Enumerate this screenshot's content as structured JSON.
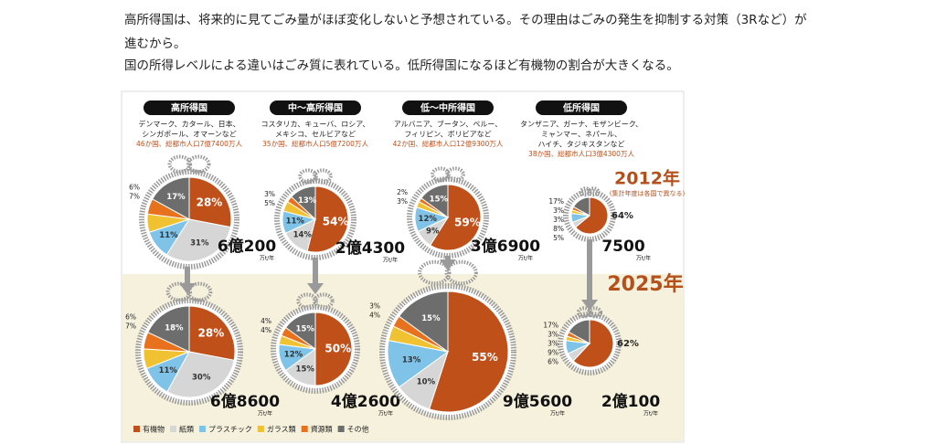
{
  "text_lines": [
    "高所得国は、将来的に見てごみ量がほぼ変化しないと予想されている。その理由はごみの発生を抑制する対策（3Rなど）が",
    "進むから。",
    "国の所得レベルによる違いはごみ質に表れている。低所得国になるほど有機物の割合が大きくなる。"
  ],
  "groups": [
    {
      "name": "高所得国",
      "countries": [
        "デンマーク、カタール、日本、",
        "シンガポール、オマーンなど"
      ],
      "population": "46か国、総都市人口7億7400万人"
    },
    {
      "name": "中～高所得国",
      "countries": [
        "コスタリカ、キューバ、ロシア、",
        "メキシコ、セルビアなど"
      ],
      "population": "35か国、総都市人口5億7200万人"
    },
    {
      "name": "低～中所得国",
      "countries": [
        "アルバニア、ブータン、ペルー、",
        "フィリピン、ボリビアなど"
      ],
      "population": "42か国、総都市人口12億9300万人"
    },
    {
      "name": "低所得国",
      "countries": [
        "タンザニア、ガーナ、モザンビーク、",
        "ミャンマー、ネパール、",
        "ハイチ、タジキスタンなど"
      ],
      "population": "38か国、総都市人口3億4300万人"
    }
  ],
  "years": {
    "first": "2012年",
    "note": "(集計年度は各国で異なる)",
    "second": "2025年"
  },
  "legend": {
    "categories": [
      "有機物",
      "紙類",
      "プラスチック",
      "ガラス類",
      "資源類",
      "その他"
    ],
    "colors": [
      "#c0501a",
      "#d6d6d6",
      "#7fc3e8",
      "#f0c232",
      "#e8711e",
      "#6d6d6d"
    ]
  },
  "chart_data": [
    {
      "type": "pie",
      "values": [
        28,
        31,
        11,
        7,
        6,
        17
      ],
      "value_labels": [
        "28%",
        "31%",
        "11%",
        "7%",
        "6%",
        "17%"
      ],
      "total": "6億200",
      "unit": "万t/年"
    },
    {
      "type": "pie",
      "values": [
        28,
        30,
        11,
        7,
        6,
        18
      ],
      "value_labels": [
        "28%",
        "30%",
        "11%",
        "7%",
        "6%",
        "18%"
      ],
      "total": "6億8600",
      "unit": "万t/年"
    },
    {
      "type": "pie",
      "values": [
        54,
        14,
        11,
        5,
        3,
        13
      ],
      "value_labels": [
        "54%",
        "14%",
        "11%",
        "5%",
        "3%",
        "13%"
      ],
      "total": "2億4300",
      "unit": "万t/年"
    },
    {
      "type": "pie",
      "values": [
        50,
        15,
        12,
        4,
        4,
        15
      ],
      "value_labels": [
        "50%",
        "15%",
        "12%",
        "4%",
        "4%",
        "15%"
      ],
      "total": "4億2600",
      "unit": "万t/年"
    },
    {
      "type": "pie",
      "values": [
        59,
        9,
        12,
        3,
        2,
        15
      ],
      "value_labels": [
        "59%",
        "9%",
        "12%",
        "3%",
        "2%",
        "15%"
      ],
      "total": "3億6900",
      "unit": "万t/年"
    },
    {
      "type": "pie",
      "values": [
        55,
        10,
        13,
        4,
        3,
        15
      ],
      "value_labels": [
        "55%",
        "10%",
        "13%",
        "4%",
        "3%",
        "15%"
      ],
      "total": "9億5600",
      "unit": "万t/年"
    },
    {
      "type": "pie",
      "values": [
        64,
        5,
        8,
        3,
        3,
        17
      ],
      "value_labels": [
        "64%",
        "5%",
        "8%",
        "3%",
        "3%",
        "17%"
      ],
      "total": "7500",
      "unit": "万t/年"
    },
    {
      "type": "pie",
      "values": [
        62,
        6,
        9,
        3,
        3,
        17
      ],
      "value_labels": [
        "62%",
        "6%",
        "9%",
        "3%",
        "3%",
        "17%"
      ],
      "total": "2億100",
      "unit": "万t/年"
    }
  ]
}
